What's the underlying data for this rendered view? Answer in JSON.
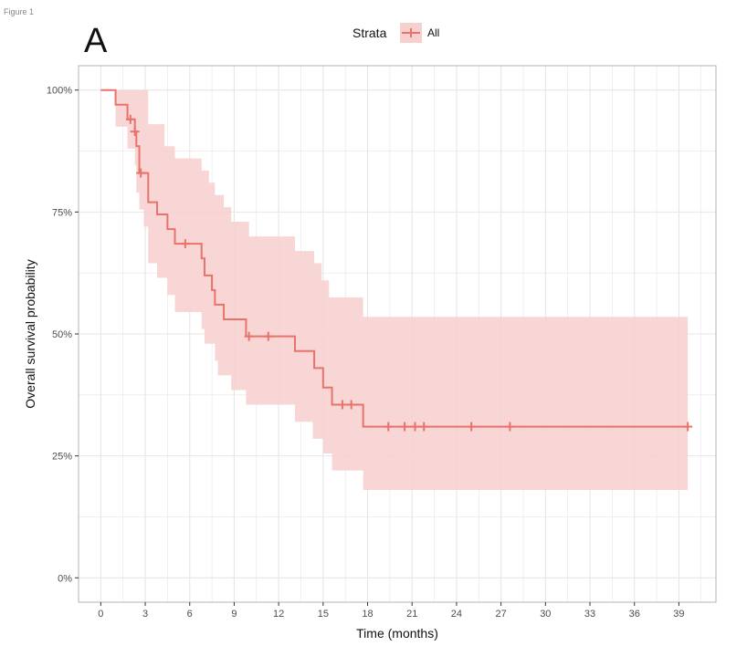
{
  "figure": {
    "caption": "Figure 1",
    "panel_label": "A"
  },
  "chart_data": {
    "type": "line",
    "subtype": "kaplan-meier",
    "title": "",
    "xlabel": "Time (months)",
    "ylabel": "Overall survival probability",
    "xlim": [
      -1.5,
      41.5
    ],
    "ylim": [
      -0.05,
      1.05
    ],
    "xticks": [
      0,
      3,
      6,
      9,
      12,
      15,
      18,
      21,
      24,
      27,
      30,
      33,
      36,
      39
    ],
    "yticks": [
      0,
      0.25,
      0.5,
      0.75,
      1.0
    ],
    "ytick_labels": [
      "0%",
      "25%",
      "50%",
      "75%",
      "100%"
    ],
    "grid": true,
    "legend": {
      "title": "Strata",
      "position": "top",
      "entries": [
        "All"
      ]
    },
    "series": [
      {
        "name": "All",
        "color": "#E8736B",
        "band_color": "#F8CFCF",
        "curve": [
          [
            0,
            1.0
          ],
          [
            1.0,
            1.0
          ],
          [
            1.0,
            0.97
          ],
          [
            1.8,
            0.97
          ],
          [
            1.8,
            0.94
          ],
          [
            2.3,
            0.94
          ],
          [
            2.3,
            0.915
          ],
          [
            2.4,
            0.915
          ],
          [
            2.4,
            0.885
          ],
          [
            2.6,
            0.885
          ],
          [
            2.6,
            0.83
          ],
          [
            3.2,
            0.83
          ],
          [
            3.2,
            0.77
          ],
          [
            3.8,
            0.77
          ],
          [
            3.8,
            0.745
          ],
          [
            4.5,
            0.745
          ],
          [
            4.5,
            0.715
          ],
          [
            5.0,
            0.715
          ],
          [
            5.0,
            0.685
          ],
          [
            6.8,
            0.685
          ],
          [
            6.8,
            0.655
          ],
          [
            7.0,
            0.655
          ],
          [
            7.0,
            0.62
          ],
          [
            7.5,
            0.62
          ],
          [
            7.5,
            0.59
          ],
          [
            7.7,
            0.59
          ],
          [
            7.7,
            0.56
          ],
          [
            8.3,
            0.56
          ],
          [
            8.3,
            0.53
          ],
          [
            9.8,
            0.53
          ],
          [
            9.8,
            0.495
          ],
          [
            13.1,
            0.495
          ],
          [
            13.1,
            0.465
          ],
          [
            14.4,
            0.465
          ],
          [
            14.4,
            0.43
          ],
          [
            15.0,
            0.43
          ],
          [
            15.0,
            0.39
          ],
          [
            15.6,
            0.39
          ],
          [
            15.6,
            0.355
          ],
          [
            17.7,
            0.355
          ],
          [
            17.7,
            0.31
          ],
          [
            39.6,
            0.31
          ]
        ],
        "upper": [
          [
            0,
            1.0
          ],
          [
            1.0,
            1.0
          ],
          [
            3.2,
            1.0
          ],
          [
            3.2,
            0.93
          ],
          [
            4.3,
            0.93
          ],
          [
            4.3,
            0.885
          ],
          [
            5.0,
            0.885
          ],
          [
            5.0,
            0.86
          ],
          [
            6.8,
            0.86
          ],
          [
            6.8,
            0.835
          ],
          [
            7.3,
            0.835
          ],
          [
            7.3,
            0.81
          ],
          [
            7.7,
            0.81
          ],
          [
            7.7,
            0.785
          ],
          [
            8.3,
            0.785
          ],
          [
            8.3,
            0.76
          ],
          [
            8.8,
            0.76
          ],
          [
            8.8,
            0.73
          ],
          [
            10.0,
            0.73
          ],
          [
            10.0,
            0.7
          ],
          [
            13.1,
            0.7
          ],
          [
            13.1,
            0.67
          ],
          [
            14.4,
            0.67
          ],
          [
            14.4,
            0.645
          ],
          [
            14.9,
            0.645
          ],
          [
            14.9,
            0.61
          ],
          [
            15.4,
            0.61
          ],
          [
            15.4,
            0.575
          ],
          [
            17.7,
            0.575
          ],
          [
            17.7,
            0.535
          ],
          [
            39.6,
            0.535
          ]
        ],
        "lower": [
          [
            0,
            1.0
          ],
          [
            1.0,
            1.0
          ],
          [
            1.0,
            0.925
          ],
          [
            1.8,
            0.925
          ],
          [
            1.8,
            0.88
          ],
          [
            2.3,
            0.88
          ],
          [
            2.3,
            0.845
          ],
          [
            2.4,
            0.845
          ],
          [
            2.4,
            0.79
          ],
          [
            2.6,
            0.79
          ],
          [
            2.6,
            0.755
          ],
          [
            2.9,
            0.755
          ],
          [
            2.9,
            0.72
          ],
          [
            3.2,
            0.72
          ],
          [
            3.2,
            0.645
          ],
          [
            3.8,
            0.645
          ],
          [
            3.8,
            0.615
          ],
          [
            4.5,
            0.615
          ],
          [
            4.5,
            0.58
          ],
          [
            5.0,
            0.58
          ],
          [
            5.0,
            0.545
          ],
          [
            6.8,
            0.545
          ],
          [
            6.8,
            0.51
          ],
          [
            7.0,
            0.51
          ],
          [
            7.0,
            0.48
          ],
          [
            7.7,
            0.48
          ],
          [
            7.7,
            0.445
          ],
          [
            7.9,
            0.445
          ],
          [
            7.9,
            0.415
          ],
          [
            8.8,
            0.415
          ],
          [
            8.8,
            0.385
          ],
          [
            9.8,
            0.385
          ],
          [
            9.8,
            0.355
          ],
          [
            13.1,
            0.355
          ],
          [
            13.1,
            0.32
          ],
          [
            14.3,
            0.32
          ],
          [
            14.3,
            0.285
          ],
          [
            15.0,
            0.285
          ],
          [
            15.0,
            0.255
          ],
          [
            15.6,
            0.255
          ],
          [
            15.6,
            0.22
          ],
          [
            17.7,
            0.22
          ],
          [
            17.7,
            0.18
          ],
          [
            39.6,
            0.18
          ]
        ],
        "censored": [
          [
            2.0,
            0.94
          ],
          [
            2.3,
            0.915
          ],
          [
            2.7,
            0.83
          ],
          [
            5.7,
            0.685
          ],
          [
            10.0,
            0.495
          ],
          [
            11.3,
            0.495
          ],
          [
            16.3,
            0.355
          ],
          [
            16.9,
            0.355
          ],
          [
            19.4,
            0.31
          ],
          [
            20.5,
            0.31
          ],
          [
            21.2,
            0.31
          ],
          [
            21.8,
            0.31
          ],
          [
            25.0,
            0.31
          ],
          [
            27.6,
            0.31
          ],
          [
            39.6,
            0.31
          ]
        ]
      }
    ]
  }
}
